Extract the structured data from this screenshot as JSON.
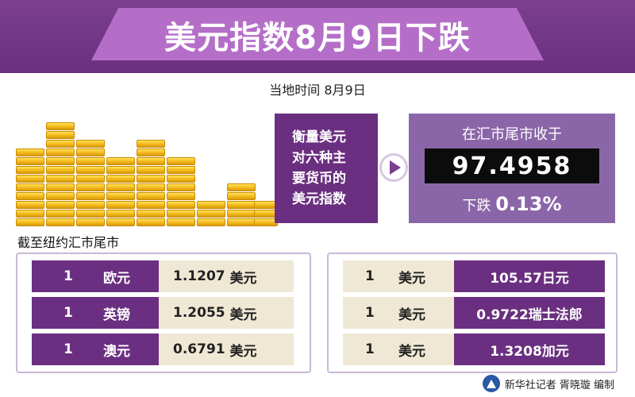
{
  "header": {
    "title": "美元指数8月9日下跌"
  },
  "subheader": {
    "text": "当地时间  8月9日"
  },
  "index_panel": {
    "label_lines": [
      "衡量美元",
      "对六种主",
      "要货币的",
      "美元指数"
    ],
    "close_caption": "在汇市尾市收于",
    "close_value": "97.4958",
    "change_prefix": "下跌",
    "change_pct": "0.13%"
  },
  "as_of": "截至纽约汇市尾市",
  "left_table": [
    {
      "qty": "1",
      "currency": "欧元",
      "rate": "1.1207",
      "unit": "美元"
    },
    {
      "qty": "1",
      "currency": "英镑",
      "rate": "1.2055",
      "unit": "美元"
    },
    {
      "qty": "1",
      "currency": "澳元",
      "rate": "0.6791",
      "unit": "美元"
    }
  ],
  "right_table": [
    {
      "qty": "1",
      "currency": "美元",
      "value": "105.57日元"
    },
    {
      "qty": "1",
      "currency": "美元",
      "value": "0.9722瑞士法郎"
    },
    {
      "qty": "1",
      "currency": "美元",
      "value": "1.3208加元"
    }
  ],
  "footer": {
    "credit": "新华社记者  胥晓璇  编制"
  },
  "colors": {
    "purple_dark": "#6a2f80",
    "purple_mid": "#8a66a8",
    "purple_light": "#b46ec8",
    "beige": "#efe8d4",
    "gold": "#f3b91c"
  }
}
